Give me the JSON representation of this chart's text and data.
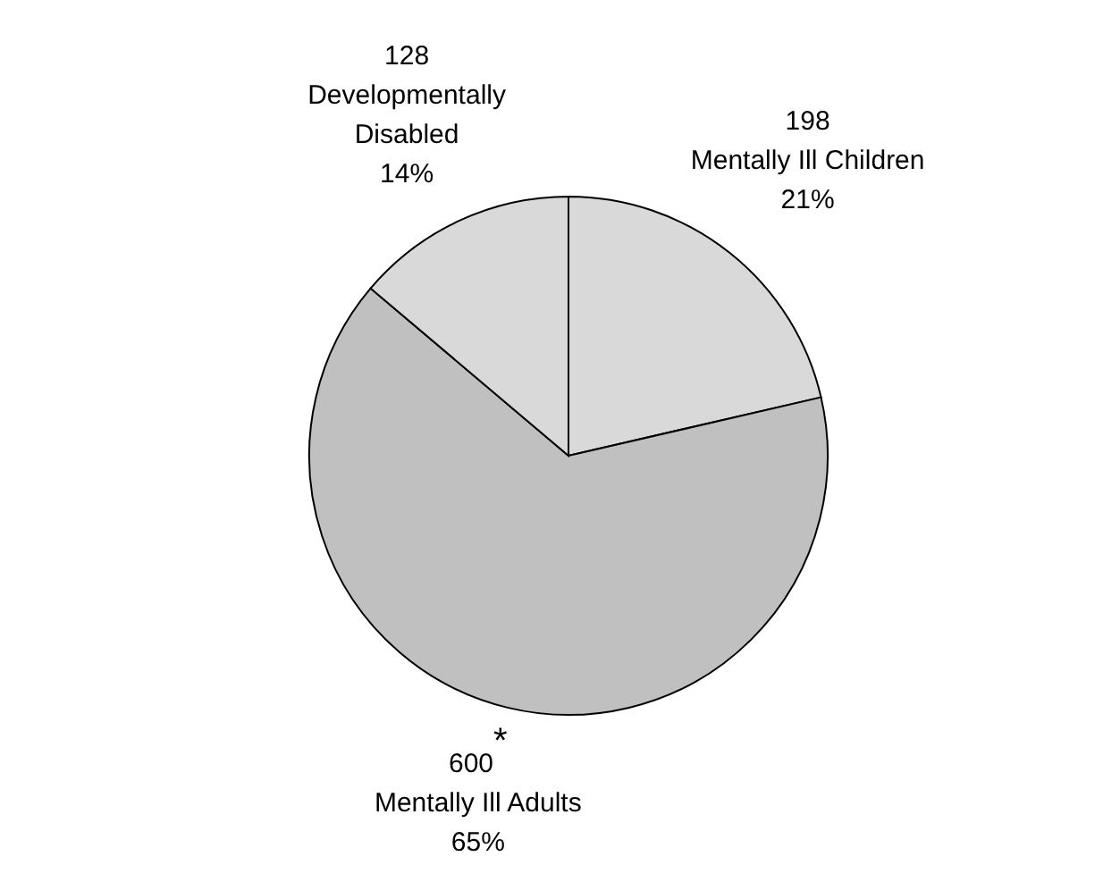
{
  "chart_data": {
    "type": "pie",
    "categories": [
      "Mentally Ill Children",
      "Mentally Ill Adults",
      "Developmentally Disabled"
    ],
    "values": [
      198,
      600,
      128
    ],
    "colors": [
      "#d9d9d9",
      "#c0c0c0",
      "#d9d9d9"
    ],
    "value_labels": [
      "198",
      "600$^{*}$",
      "128"
    ],
    "annotations": [
      "21%",
      "65%",
      "14%"
    ]
  }
}
